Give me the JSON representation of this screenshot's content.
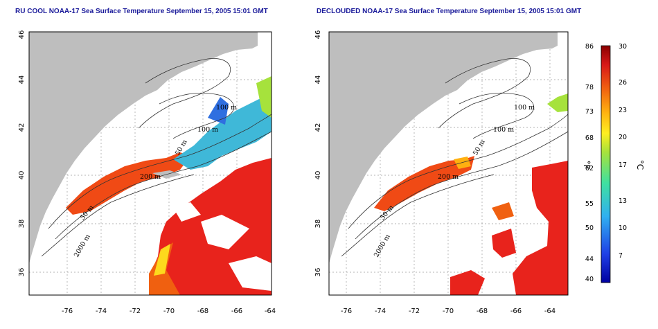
{
  "panels": [
    {
      "title": "RU COOL NOAA-17 Sea Surface Temperature September 15, 2005 15:01 GMT",
      "contour_labels": [
        "100 m",
        "100 m",
        "50 m",
        "200 m",
        "50 m",
        "2000 m"
      ]
    },
    {
      "title": "DECLOUDED NOAA-17 Sea Surface Temperature September 15, 2005 15:01 GMT",
      "contour_labels": [
        "100 m",
        "100 m",
        "50 m",
        "200 m",
        "50 m",
        "2000 m"
      ]
    }
  ],
  "axes": {
    "x_ticks": [
      "-76",
      "-74",
      "-72",
      "-70",
      "-68",
      "-66",
      "-64"
    ],
    "y_ticks": [
      "36",
      "38",
      "40",
      "42",
      "44",
      "46"
    ]
  },
  "colorbar": {
    "fahrenheit_ticks": [
      "86",
      "78",
      "73",
      "68",
      "62",
      "55",
      "50",
      "44",
      "40"
    ],
    "celsius_ticks": [
      "30",
      "26",
      "23",
      "20",
      "17",
      "13",
      "10",
      "7"
    ],
    "fahrenheit_unit": "°F",
    "celsius_unit": "°C"
  },
  "colors": {
    "land": "#bebebe",
    "title": "#1a1a9a",
    "sst_warm": "#e8231c",
    "sst_cool": "#2f6fe0"
  }
}
